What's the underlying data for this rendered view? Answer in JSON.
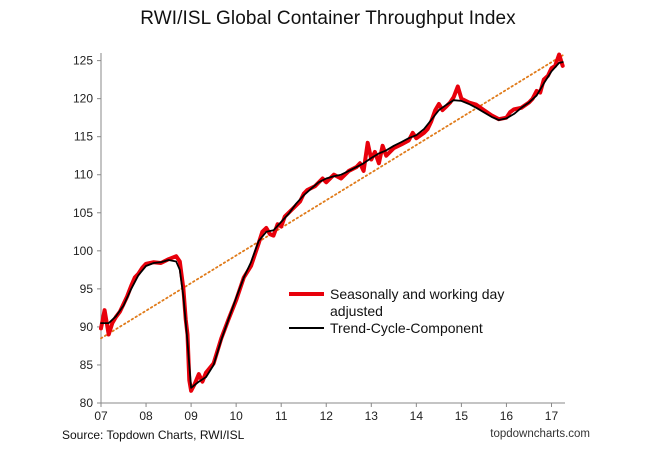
{
  "footer": {
    "source": "Source: Topdown Charts, RWI/ISL",
    "website": "topdowncharts.com"
  },
  "colors": {
    "seasonal": "#e8000b",
    "trend": "#000000",
    "trendline": "#e07b1a"
  },
  "chart_data": {
    "type": "line",
    "title": "RWI/ISL Global Container Throughput Index",
    "xlabel": "",
    "ylabel": "",
    "x_tick_labels": [
      "07",
      "08",
      "09",
      "10",
      "11",
      "12",
      "13",
      "14",
      "15",
      "16",
      "17"
    ],
    "x_tick_values": [
      2007,
      2008,
      2009,
      2010,
      2011,
      2012,
      2013,
      2014,
      2015,
      2016,
      2017
    ],
    "y_ticks": [
      80,
      85,
      90,
      95,
      100,
      105,
      110,
      115,
      120,
      125
    ],
    "xlim": [
      2007,
      2017.3
    ],
    "ylim": [
      80,
      126
    ],
    "grid": false,
    "legend_position": "center-right",
    "series": [
      {
        "name": "Seasonally and working day adjusted",
        "color": "#e8000b",
        "points": [
          [
            2007.0,
            89.8
          ],
          [
            2007.08,
            92.2
          ],
          [
            2007.17,
            89.0
          ],
          [
            2007.25,
            90.5
          ],
          [
            2007.33,
            91.3
          ],
          [
            2007.42,
            92.0
          ],
          [
            2007.5,
            93.0
          ],
          [
            2007.58,
            94.0
          ],
          [
            2007.67,
            95.4
          ],
          [
            2007.75,
            96.5
          ],
          [
            2007.83,
            97.0
          ],
          [
            2007.92,
            97.8
          ],
          [
            2008.0,
            98.3
          ],
          [
            2008.17,
            98.5
          ],
          [
            2008.33,
            98.4
          ],
          [
            2008.5,
            98.9
          ],
          [
            2008.67,
            99.3
          ],
          [
            2008.75,
            98.6
          ],
          [
            2008.83,
            95.0
          ],
          [
            2008.88,
            91.0
          ],
          [
            2008.92,
            89.0
          ],
          [
            2008.96,
            83.0
          ],
          [
            2009.0,
            81.6
          ],
          [
            2009.08,
            82.5
          ],
          [
            2009.17,
            83.8
          ],
          [
            2009.25,
            82.8
          ],
          [
            2009.33,
            84.0
          ],
          [
            2009.5,
            85.2
          ],
          [
            2009.67,
            88.5
          ],
          [
            2009.83,
            91.0
          ],
          [
            2010.0,
            93.5
          ],
          [
            2010.17,
            96.5
          ],
          [
            2010.33,
            98.0
          ],
          [
            2010.5,
            101.0
          ],
          [
            2010.58,
            102.5
          ],
          [
            2010.67,
            103.0
          ],
          [
            2010.75,
            102.2
          ],
          [
            2010.83,
            102.0
          ],
          [
            2010.92,
            103.5
          ],
          [
            2011.0,
            103.2
          ],
          [
            2011.08,
            104.5
          ],
          [
            2011.25,
            105.5
          ],
          [
            2011.42,
            106.5
          ],
          [
            2011.5,
            107.5
          ],
          [
            2011.58,
            108.0
          ],
          [
            2011.75,
            108.5
          ],
          [
            2011.92,
            109.5
          ],
          [
            2012.0,
            109.0
          ],
          [
            2012.17,
            110.0
          ],
          [
            2012.33,
            109.5
          ],
          [
            2012.5,
            110.5
          ],
          [
            2012.67,
            111.0
          ],
          [
            2012.75,
            111.5
          ],
          [
            2012.83,
            110.5
          ],
          [
            2012.92,
            114.2
          ],
          [
            2013.0,
            112.0
          ],
          [
            2013.08,
            113.0
          ],
          [
            2013.17,
            111.5
          ],
          [
            2013.25,
            113.8
          ],
          [
            2013.33,
            112.5
          ],
          [
            2013.5,
            113.5
          ],
          [
            2013.67,
            114.0
          ],
          [
            2013.83,
            114.5
          ],
          [
            2013.92,
            115.5
          ],
          [
            2014.0,
            114.8
          ],
          [
            2014.17,
            115.5
          ],
          [
            2014.25,
            116.0
          ],
          [
            2014.33,
            117.0
          ],
          [
            2014.42,
            118.5
          ],
          [
            2014.5,
            119.3
          ],
          [
            2014.58,
            118.5
          ],
          [
            2014.67,
            119.0
          ],
          [
            2014.75,
            119.5
          ],
          [
            2014.83,
            120.2
          ],
          [
            2014.92,
            121.6
          ],
          [
            2015.0,
            120.0
          ],
          [
            2015.17,
            119.5
          ],
          [
            2015.33,
            119.2
          ],
          [
            2015.5,
            118.5
          ],
          [
            2015.67,
            117.8
          ],
          [
            2015.83,
            117.3
          ],
          [
            2016.0,
            117.5
          ],
          [
            2016.08,
            118.2
          ],
          [
            2016.17,
            118.6
          ],
          [
            2016.33,
            118.8
          ],
          [
            2016.5,
            119.5
          ],
          [
            2016.58,
            120.0
          ],
          [
            2016.67,
            121.0
          ],
          [
            2016.75,
            120.8
          ],
          [
            2016.83,
            122.5
          ],
          [
            2016.92,
            123.0
          ],
          [
            2017.0,
            124.0
          ],
          [
            2017.08,
            124.3
          ],
          [
            2017.17,
            125.8
          ],
          [
            2017.25,
            124.3
          ]
        ]
      },
      {
        "name": "Trend-Cycle-Component",
        "color": "#000000",
        "points": [
          [
            2007.0,
            90.5
          ],
          [
            2007.17,
            90.5
          ],
          [
            2007.33,
            91.4
          ],
          [
            2007.5,
            92.8
          ],
          [
            2007.67,
            95.0
          ],
          [
            2007.83,
            96.8
          ],
          [
            2008.0,
            98.0
          ],
          [
            2008.17,
            98.4
          ],
          [
            2008.33,
            98.5
          ],
          [
            2008.5,
            98.8
          ],
          [
            2008.67,
            98.6
          ],
          [
            2008.75,
            97.5
          ],
          [
            2008.83,
            94.0
          ],
          [
            2008.92,
            88.0
          ],
          [
            2009.0,
            82.0
          ],
          [
            2009.17,
            82.8
          ],
          [
            2009.33,
            83.4
          ],
          [
            2009.5,
            85.0
          ],
          [
            2009.67,
            88.3
          ],
          [
            2009.83,
            91.0
          ],
          [
            2010.0,
            93.8
          ],
          [
            2010.17,
            96.5
          ],
          [
            2010.33,
            98.5
          ],
          [
            2010.5,
            101.3
          ],
          [
            2010.67,
            102.5
          ],
          [
            2010.83,
            102.7
          ],
          [
            2011.0,
            103.8
          ],
          [
            2011.17,
            104.9
          ],
          [
            2011.33,
            106.2
          ],
          [
            2011.5,
            107.3
          ],
          [
            2011.67,
            108.2
          ],
          [
            2011.83,
            109.0
          ],
          [
            2012.0,
            109.5
          ],
          [
            2012.17,
            109.8
          ],
          [
            2012.33,
            110.0
          ],
          [
            2012.5,
            110.5
          ],
          [
            2012.67,
            111.0
          ],
          [
            2012.83,
            111.5
          ],
          [
            2013.0,
            112.2
          ],
          [
            2013.17,
            112.8
          ],
          [
            2013.33,
            113.2
          ],
          [
            2013.5,
            113.8
          ],
          [
            2013.67,
            114.3
          ],
          [
            2013.83,
            114.8
          ],
          [
            2014.0,
            115.2
          ],
          [
            2014.17,
            116.0
          ],
          [
            2014.33,
            117.2
          ],
          [
            2014.5,
            118.5
          ],
          [
            2014.67,
            119.2
          ],
          [
            2014.83,
            119.8
          ],
          [
            2015.0,
            119.7
          ],
          [
            2015.17,
            119.3
          ],
          [
            2015.33,
            118.8
          ],
          [
            2015.5,
            118.2
          ],
          [
            2015.67,
            117.6
          ],
          [
            2015.83,
            117.2
          ],
          [
            2016.0,
            117.4
          ],
          [
            2016.17,
            118.0
          ],
          [
            2016.33,
            118.8
          ],
          [
            2016.5,
            119.5
          ],
          [
            2016.67,
            120.4
          ],
          [
            2016.83,
            122.0
          ],
          [
            2017.0,
            123.6
          ],
          [
            2017.17,
            124.7
          ],
          [
            2017.25,
            124.8
          ]
        ]
      }
    ],
    "trendline": {
      "style": "dotted",
      "color": "#e07b1a",
      "points": [
        [
          2007.0,
          88.5
        ],
        [
          2017.25,
          125.7
        ]
      ]
    }
  }
}
